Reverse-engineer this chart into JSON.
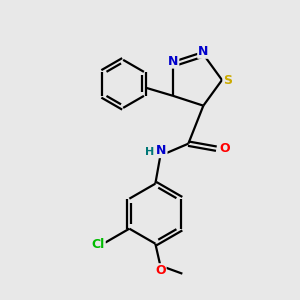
{
  "bg_color": "#e8e8e8",
  "atom_colors": {
    "N": "#0000cc",
    "S": "#ccaa00",
    "O": "#ff0000",
    "C": "#000000",
    "Cl": "#00bb00",
    "H": "#007777"
  },
  "bond_color": "#000000",
  "bond_lw": 1.6,
  "figsize": [
    3.0,
    3.0
  ],
  "dpi": 100
}
